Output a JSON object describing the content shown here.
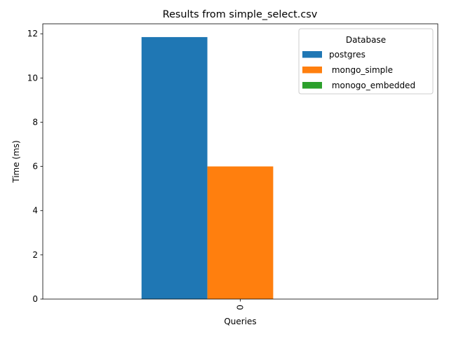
{
  "chart_data": {
    "type": "bar",
    "title": "Results from simple_select.csv",
    "xlabel": "Queries",
    "ylabel": "Time (ms)",
    "categories": [
      "0"
    ],
    "ylim": [
      0,
      12.45
    ],
    "yticks": [
      0,
      2,
      4,
      6,
      8,
      10,
      12
    ],
    "ytick_labels": [
      "0",
      "2",
      "4",
      "6",
      "8",
      "10",
      "12"
    ],
    "xtick_rotation": "vertical",
    "grid": false,
    "legend": {
      "title": "Database",
      "placement": "top-right"
    },
    "series": [
      {
        "name": "postgres",
        "values": [
          11.85
        ],
        "color": "#1f77b4"
      },
      {
        "name": " mongo_simple",
        "values": [
          6.0
        ],
        "color": "#ff7f0e"
      },
      {
        "name": " monogo_embedded",
        "values": [
          0.0
        ],
        "color": "#2ca02c"
      }
    ]
  }
}
